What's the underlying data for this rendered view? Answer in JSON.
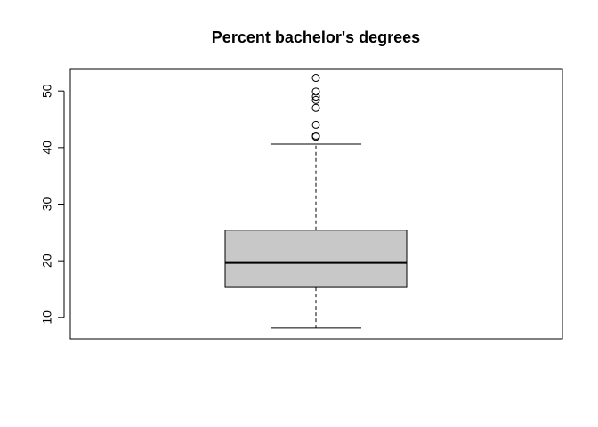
{
  "chart_data": {
    "type": "boxplot",
    "title": "Percent bachelor's degrees",
    "xlabel": "",
    "ylabel": "",
    "ylim": [
      6.2,
      53.8
    ],
    "yticks": [
      10,
      20,
      30,
      40,
      50
    ],
    "ytick_labels": [
      "10",
      "20",
      "30",
      "40",
      "50"
    ],
    "grid": false,
    "box": {
      "whisker_low": 8.1,
      "q1": 15.3,
      "median": 19.7,
      "q3": 25.4,
      "whisker_high": 40.6,
      "fill": "#c8c8c8"
    },
    "outliers": [
      41.9,
      42.1,
      44.0,
      47.0,
      48.4,
      49.0,
      49.9,
      52.3
    ]
  }
}
